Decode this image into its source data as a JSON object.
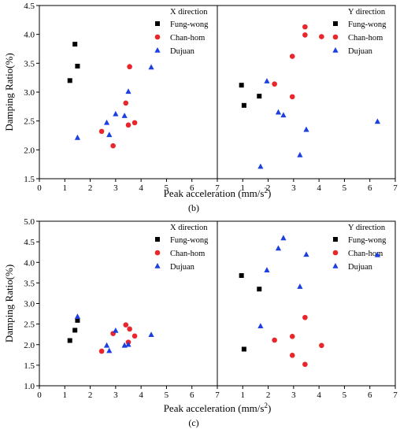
{
  "chart_data": [
    {
      "type": "scatter",
      "label": "(b)",
      "ylabel": "Damping  Ratio(%)",
      "xlabel": "Peak acceleration (mm/s²)",
      "ylim": [
        1.5,
        4.5
      ],
      "yticks": [
        "1.5",
        "2.0",
        "2.5",
        "3.0",
        "3.5",
        "4.0",
        "4.5"
      ],
      "panels": [
        {
          "title": "X direction",
          "xlim": [
            0,
            7
          ],
          "xticks": [
            "0",
            "1",
            "2",
            "3",
            "4",
            "5",
            "6",
            "7"
          ],
          "series": [
            {
              "name": "Fung-wong",
              "color": "#000000",
              "marker": "square",
              "points": [
                [
                  1.2,
                  3.2
                ],
                [
                  1.4,
                  3.83
                ],
                [
                  1.5,
                  3.45
                ]
              ]
            },
            {
              "name": "Chan-hom",
              "color": "#e8262b",
              "marker": "circle",
              "points": [
                [
                  2.45,
                  2.32
                ],
                [
                  2.9,
                  2.07
                ],
                [
                  3.4,
                  2.81
                ],
                [
                  3.5,
                  2.43
                ],
                [
                  3.55,
                  3.44
                ],
                [
                  3.75,
                  2.47
                ]
              ]
            },
            {
              "name": "Dujuan",
              "color": "#1b3fe0",
              "marker": "triangle",
              "points": [
                [
                  1.5,
                  2.21
                ],
                [
                  2.65,
                  2.47
                ],
                [
                  2.75,
                  2.26
                ],
                [
                  3.0,
                  2.62
                ],
                [
                  3.35,
                  2.59
                ],
                [
                  3.5,
                  3.01
                ],
                [
                  4.4,
                  3.43
                ]
              ]
            }
          ]
        },
        {
          "title": "Y direction",
          "xlim": [
            0,
            7
          ],
          "xticks": [
            "0",
            "1",
            "2",
            "3",
            "4",
            "5",
            "6",
            "7"
          ],
          "series": [
            {
              "name": "Fung-wong",
              "color": "#000000",
              "marker": "square",
              "points": [
                [
                  0.95,
                  3.12
                ],
                [
                  1.05,
                  2.77
                ],
                [
                  1.65,
                  2.93
                ]
              ]
            },
            {
              "name": "Chan-hom",
              "color": "#e8262b",
              "marker": "circle",
              "points": [
                [
                  2.25,
                  3.14
                ],
                [
                  2.95,
                  3.62
                ],
                [
                  2.95,
                  2.92
                ],
                [
                  3.45,
                  4.13
                ],
                [
                  3.45,
                  3.99
                ],
                [
                  4.1,
                  3.96
                ]
              ]
            },
            {
              "name": "Dujuan",
              "color": "#1b3fe0",
              "marker": "triangle",
              "points": [
                [
                  1.7,
                  1.71
                ],
                [
                  1.95,
                  3.19
                ],
                [
                  2.4,
                  2.65
                ],
                [
                  2.6,
                  2.6
                ],
                [
                  3.25,
                  1.91
                ],
                [
                  3.5,
                  2.35
                ],
                [
                  6.3,
                  2.49
                ]
              ]
            }
          ]
        }
      ]
    },
    {
      "type": "scatter",
      "label": "(c)",
      "ylabel": "Damping  Ratio(%)",
      "xlabel": "Peak acceleration (mm/s²)",
      "ylim": [
        1.0,
        5.0
      ],
      "yticks": [
        "1.0",
        "1.5",
        "2.0",
        "2.5",
        "3.0",
        "3.5",
        "4.0",
        "4.5",
        "5.0"
      ],
      "panels": [
        {
          "title": "X direction",
          "xlim": [
            0,
            7
          ],
          "xticks": [
            "0",
            "1",
            "2",
            "3",
            "4",
            "5",
            "6",
            "7"
          ],
          "series": [
            {
              "name": "Fung-wong",
              "color": "#000000",
              "marker": "square",
              "points": [
                [
                  1.2,
                  2.1
                ],
                [
                  1.4,
                  2.35
                ],
                [
                  1.5,
                  2.59
                ]
              ]
            },
            {
              "name": "Chan-hom",
              "color": "#e8262b",
              "marker": "circle",
              "points": [
                [
                  2.45,
                  1.84
                ],
                [
                  2.9,
                  2.27
                ],
                [
                  3.4,
                  2.48
                ],
                [
                  3.5,
                  2.06
                ],
                [
                  3.55,
                  2.38
                ],
                [
                  3.75,
                  2.21
                ]
              ]
            },
            {
              "name": "Dujuan",
              "color": "#1b3fe0",
              "marker": "triangle",
              "points": [
                [
                  1.5,
                  2.68
                ],
                [
                  2.65,
                  1.98
                ],
                [
                  2.75,
                  1.85
                ],
                [
                  3.0,
                  2.34
                ],
                [
                  3.35,
                  1.98
                ],
                [
                  3.5,
                  2.0
                ],
                [
                  4.4,
                  2.24
                ]
              ]
            }
          ]
        },
        {
          "title": "Y direction",
          "xlim": [
            0,
            7
          ],
          "xticks": [
            "0",
            "1",
            "2",
            "3",
            "4",
            "5",
            "6",
            "7"
          ],
          "series": [
            {
              "name": "Fung-wong",
              "color": "#000000",
              "marker": "square",
              "points": [
                [
                  0.95,
                  3.68
                ],
                [
                  1.05,
                  1.89
                ],
                [
                  1.65,
                  3.35
                ]
              ]
            },
            {
              "name": "Chan-hom",
              "color": "#e8262b",
              "marker": "circle",
              "points": [
                [
                  2.25,
                  2.11
                ],
                [
                  2.95,
                  2.2
                ],
                [
                  2.95,
                  1.74
                ],
                [
                  3.45,
                  2.66
                ],
                [
                  3.45,
                  1.52
                ],
                [
                  4.1,
                  1.98
                ]
              ]
            },
            {
              "name": "Dujuan",
              "color": "#1b3fe0",
              "marker": "triangle",
              "points": [
                [
                  1.7,
                  2.45
                ],
                [
                  1.95,
                  3.81
                ],
                [
                  2.4,
                  4.34
                ],
                [
                  2.6,
                  4.59
                ],
                [
                  3.25,
                  3.41
                ],
                [
                  3.5,
                  4.19
                ],
                [
                  6.3,
                  4.18
                ]
              ]
            }
          ]
        }
      ]
    }
  ]
}
